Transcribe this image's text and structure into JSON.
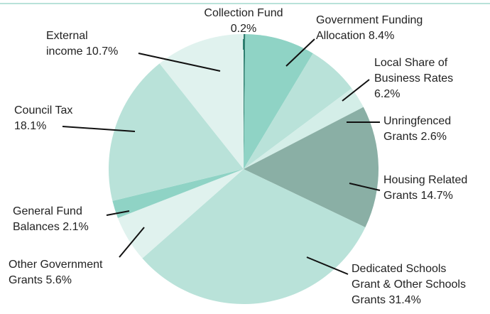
{
  "chart_data": {
    "type": "pie",
    "categories": [
      "Collection Fund",
      "Government Funding Allocation",
      "Local Share of Business Rates",
      "Unringfenced Grants",
      "Housing Related Grants",
      "Dedicated Schools Grant & Other Schools Grants",
      "Other Government Grants",
      "General Fund Balances",
      "Council Tax",
      "External income"
    ],
    "values": [
      0.2,
      8.4,
      6.2,
      2.6,
      14.7,
      31.4,
      5.6,
      2.1,
      18.1,
      10.7
    ],
    "value_labels": [
      "0.2%",
      "8.4%",
      "6.2%",
      "2.6%",
      "14.7%",
      "31.4%",
      "5.6%",
      "2.1%",
      "18.1%",
      "10.7%"
    ],
    "colors": [
      "#2f7f70",
      "#8fd3c5",
      "#b9e2d9",
      "#d4eee8",
      "#8aafa5",
      "#b9e2d9",
      "#e0f2ee",
      "#8fd3c5",
      "#b9e2d9",
      "#e0f2ee"
    ]
  }
}
